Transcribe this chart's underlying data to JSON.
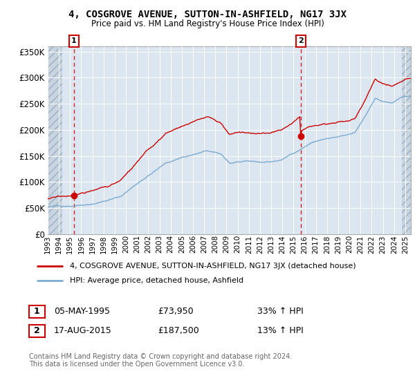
{
  "title1": "4, COSGROVE AVENUE, SUTTON-IN-ASHFIELD, NG17 3JX",
  "title2": "Price paid vs. HM Land Registry's House Price Index (HPI)",
  "background_color": "#ffffff",
  "plot_bg_color": "#dce6f0",
  "hatch_bg_color": "#c8d4e0",
  "grid_color": "#ffffff",
  "red_line_color": "#cc0000",
  "blue_line_color": "#7aaad0",
  "xmin": 1993,
  "xmax": 2025.5,
  "ymin": 0,
  "ymax": 360000,
  "yticks": [
    0,
    50000,
    100000,
    150000,
    200000,
    250000,
    300000,
    350000
  ],
  "ytick_labels": [
    "£0",
    "£50K",
    "£100K",
    "£150K",
    "£200K",
    "£250K",
    "£300K",
    "£350K"
  ],
  "xtick_years": [
    1993,
    1994,
    1995,
    1996,
    1997,
    1998,
    1999,
    2000,
    2001,
    2002,
    2003,
    2004,
    2005,
    2006,
    2007,
    2008,
    2009,
    2010,
    2011,
    2012,
    2013,
    2014,
    2015,
    2016,
    2017,
    2018,
    2019,
    2020,
    2021,
    2022,
    2023,
    2024,
    2025
  ],
  "sale1_year": 1995.35,
  "sale1_price": 73950,
  "sale2_year": 2015.63,
  "sale2_price": 187500,
  "hatch_left_end": 1994.3,
  "hatch_right_start": 2024.7,
  "legend_line1": "4, COSGROVE AVENUE, SUTTON-IN-ASHFIELD, NG17 3JX (detached house)",
  "legend_line2": "HPI: Average price, detached house, Ashfield",
  "ann1_label": "1",
  "ann1_date": "05-MAY-1995",
  "ann1_price": "£73,950",
  "ann1_hpi": "33% ↑ HPI",
  "ann2_label": "2",
  "ann2_date": "17-AUG-2015",
  "ann2_price": "£187,500",
  "ann2_hpi": "13% ↑ HPI",
  "footer": "Contains HM Land Registry data © Crown copyright and database right 2024.\nThis data is licensed under the Open Government Licence v3.0."
}
